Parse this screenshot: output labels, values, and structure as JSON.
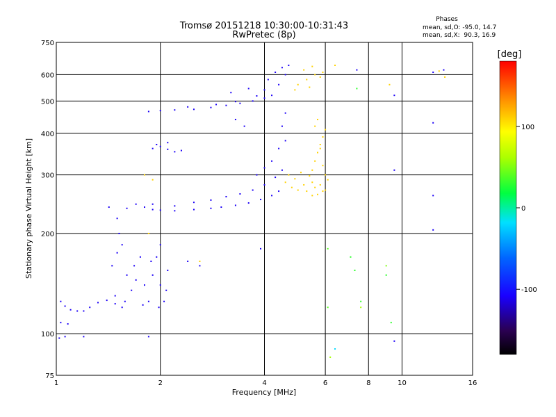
{
  "chart_data": {
    "type": "scatter",
    "title": "Tromsø 20151218 10:30:00-10:31:43",
    "subtitle": "RwPretec (8p)",
    "xlabel": "Frequency [MHz]",
    "ylabel": "Stationary phase Virtual Height [km]",
    "x_scale": "log",
    "y_scale": "log",
    "xlim": [
      1,
      16
    ],
    "ylim": [
      75,
      750
    ],
    "x_ticks": [
      1,
      2,
      4,
      6,
      8,
      10,
      16
    ],
    "y_ticks": [
      75,
      100,
      200,
      300,
      400,
      500,
      600,
      750
    ],
    "x_gridlines": [
      2,
      4,
      6,
      8,
      10
    ],
    "y_gridlines": [
      100,
      200,
      300,
      400,
      500,
      600
    ],
    "grid": true,
    "stats": {
      "header": "Phases",
      "o_line": "mean, sd,O: -95.0, 14.7",
      "x_line": "mean, sd,X:  90.3, 16.9"
    },
    "colorbar": {
      "label": "[deg]",
      "ticks": [
        100,
        0,
        -100
      ],
      "range": [
        -180,
        180
      ],
      "colormap": "rainbow"
    },
    "series": [
      {
        "points": [
          [
            1.03,
            125,
            -110
          ],
          [
            1.06,
            121,
            -110
          ],
          [
            1.1,
            118,
            -110
          ],
          [
            1.15,
            117,
            -110
          ],
          [
            1.2,
            117,
            -110
          ],
          [
            1.25,
            120,
            -110
          ],
          [
            1.32,
            124,
            -110
          ],
          [
            1.4,
            126,
            -110
          ],
          [
            1.48,
            123,
            -110
          ],
          [
            1.55,
            120,
            -110
          ],
          [
            1.03,
            108,
            -110
          ],
          [
            1.08,
            107,
            -110
          ],
          [
            1.02,
            97,
            -110
          ],
          [
            1.06,
            98,
            -110
          ],
          [
            1.2,
            98,
            -110
          ],
          [
            1.45,
            160,
            -110
          ],
          [
            1.5,
            175,
            -110
          ],
          [
            1.52,
            200,
            -110
          ],
          [
            1.55,
            185,
            -110
          ],
          [
            1.6,
            150,
            -110
          ],
          [
            1.65,
            135,
            -110
          ],
          [
            1.7,
            145,
            -110
          ],
          [
            1.75,
            170,
            -110
          ],
          [
            1.8,
            140,
            -110
          ],
          [
            1.85,
            125,
            -110
          ],
          [
            1.9,
            150,
            -110
          ],
          [
            1.95,
            170,
            -110
          ],
          [
            2.0,
            140,
            -110
          ],
          [
            2.05,
            125,
            -110
          ],
          [
            2.1,
            155,
            -110
          ],
          [
            1.48,
            130,
            -110
          ],
          [
            1.58,
            125,
            -110
          ],
          [
            1.68,
            160,
            -110
          ],
          [
            1.78,
            122,
            -110
          ],
          [
            1.88,
            165,
            -110
          ],
          [
            1.98,
            120,
            -110
          ],
          [
            2.08,
            135,
            -110
          ],
          [
            1.42,
            240,
            -110
          ],
          [
            1.5,
            222,
            -110
          ],
          [
            1.6,
            238,
            -110
          ],
          [
            1.7,
            245,
            -110
          ],
          [
            1.8,
            240,
            -110
          ],
          [
            1.9,
            236,
            -110
          ],
          [
            2.0,
            235,
            -110
          ],
          [
            2.2,
            234,
            -110
          ],
          [
            2.5,
            236,
            -110
          ],
          [
            2.8,
            238,
            -110
          ],
          [
            3.0,
            240,
            -110
          ],
          [
            3.3,
            243,
            -110
          ],
          [
            3.6,
            247,
            -110
          ],
          [
            3.9,
            253,
            -110
          ],
          [
            4.2,
            260,
            -110
          ],
          [
            4.4,
            268,
            -110
          ],
          [
            1.9,
            245,
            -110
          ],
          [
            2.2,
            242,
            -110
          ],
          [
            2.5,
            248,
            -110
          ],
          [
            2.8,
            252,
            -110
          ],
          [
            3.1,
            258,
            -110
          ],
          [
            3.4,
            263,
            -110
          ],
          [
            3.7,
            270,
            -110
          ],
          [
            4.0,
            280,
            -110
          ],
          [
            4.3,
            295,
            -110
          ],
          [
            4.5,
            310,
            -110
          ],
          [
            3.8,
            300,
            -110
          ],
          [
            4.0,
            315,
            -110
          ],
          [
            4.2,
            330,
            -110
          ],
          [
            4.4,
            360,
            -110
          ],
          [
            4.6,
            380,
            -110
          ],
          [
            4.5,
            420,
            -110
          ],
          [
            4.6,
            460,
            -110
          ],
          [
            1.9,
            360,
            -110
          ],
          [
            2.0,
            365,
            -110
          ],
          [
            2.1,
            358,
            -110
          ],
          [
            2.2,
            352,
            -110
          ],
          [
            2.3,
            355,
            -110
          ],
          [
            1.95,
            370,
            -110
          ],
          [
            2.1,
            375,
            -110
          ],
          [
            1.85,
            465,
            -110
          ],
          [
            2.0,
            468,
            -110
          ],
          [
            2.2,
            470,
            -110
          ],
          [
            2.5,
            472,
            -110
          ],
          [
            2.8,
            478,
            -110
          ],
          [
            3.1,
            485,
            -110
          ],
          [
            3.4,
            492,
            -110
          ],
          [
            3.7,
            500,
            -110
          ],
          [
            4.0,
            510,
            -110
          ],
          [
            2.4,
            480,
            -110
          ],
          [
            2.9,
            488,
            -110
          ],
          [
            3.3,
            498,
            -110
          ],
          [
            3.8,
            518,
            -110
          ],
          [
            4.0,
            540,
            -110
          ],
          [
            4.1,
            580,
            -110
          ],
          [
            4.3,
            610,
            -110
          ],
          [
            4.5,
            630,
            -110
          ],
          [
            4.7,
            640,
            -110
          ],
          [
            4.4,
            560,
            -110
          ],
          [
            4.6,
            600,
            -110
          ],
          [
            4.2,
            520,
            -110
          ],
          [
            3.2,
            530,
            -110
          ],
          [
            3.6,
            545,
            -110
          ],
          [
            3.5,
            420,
            -110
          ],
          [
            3.3,
            440,
            -110
          ],
          [
            2.6,
            160,
            -110
          ],
          [
            2.4,
            165,
            -110
          ],
          [
            3.9,
            180,
            -110
          ],
          [
            2.0,
            185,
            -110
          ],
          [
            1.85,
            98,
            -110
          ],
          [
            12.3,
            205,
            -110
          ],
          [
            12.3,
            260,
            -110
          ],
          [
            12.3,
            430,
            -110
          ],
          [
            9.5,
            95,
            -110
          ],
          [
            9.5,
            310,
            -110
          ],
          [
            9.5,
            520,
            -110
          ],
          [
            7.4,
            620,
            -110
          ],
          [
            12.3,
            610,
            -110
          ],
          [
            13.2,
            620,
            -110
          ]
        ]
      },
      {
        "points": [
          [
            4.6,
            285,
            110
          ],
          [
            4.7,
            300,
            110
          ],
          [
            4.8,
            275,
            110
          ],
          [
            4.9,
            292,
            110
          ],
          [
            5.0,
            270,
            110
          ],
          [
            5.1,
            305,
            110
          ],
          [
            5.2,
            280,
            110
          ],
          [
            5.3,
            268,
            110
          ],
          [
            5.4,
            298,
            110
          ],
          [
            5.5,
            285,
            110
          ],
          [
            5.6,
            275,
            110
          ],
          [
            5.7,
            262,
            110
          ],
          [
            5.8,
            280,
            110
          ],
          [
            5.9,
            268,
            110
          ],
          [
            5.5,
            310,
            110
          ],
          [
            5.6,
            330,
            110
          ],
          [
            5.7,
            350,
            110
          ],
          [
            5.8,
            370,
            110
          ],
          [
            5.9,
            390,
            110
          ],
          [
            6.0,
            410,
            110
          ],
          [
            5.6,
            420,
            110
          ],
          [
            5.7,
            440,
            110
          ],
          [
            5.8,
            360,
            110
          ],
          [
            5.9,
            320,
            110
          ],
          [
            6.0,
            300,
            110
          ],
          [
            5.5,
            260,
            110
          ],
          [
            5.0,
            560,
            110
          ],
          [
            5.3,
            580,
            110
          ],
          [
            5.6,
            600,
            110
          ],
          [
            5.9,
            610,
            110
          ],
          [
            5.2,
            620,
            110
          ],
          [
            5.5,
            635,
            110
          ],
          [
            5.8,
            590,
            110
          ],
          [
            4.9,
            540,
            110
          ],
          [
            5.4,
            550,
            110
          ],
          [
            6.0,
            270,
            110
          ],
          [
            6.1,
            290,
            110
          ],
          [
            1.8,
            300,
            110
          ],
          [
            1.9,
            290,
            110
          ],
          [
            2.6,
            165,
            110
          ],
          [
            1.85,
            200,
            110
          ],
          [
            12.8,
            615,
            110
          ],
          [
            13.3,
            590,
            110
          ],
          [
            6.4,
            640,
            110
          ],
          [
            9.2,
            560,
            110
          ]
        ]
      },
      {
        "points": [
          [
            7.3,
            155,
            30
          ],
          [
            7.1,
            170,
            30
          ],
          [
            9.0,
            150,
            30
          ],
          [
            7.6,
            125,
            30
          ],
          [
            7.4,
            545,
            30
          ],
          [
            6.1,
            120,
            40
          ],
          [
            6.2,
            85,
            60
          ],
          [
            6.4,
            90,
            -20
          ],
          [
            7.6,
            120,
            60
          ],
          [
            9.3,
            108,
            30
          ],
          [
            9.0,
            160,
            50
          ],
          [
            6.1,
            180,
            40
          ]
        ]
      }
    ]
  }
}
